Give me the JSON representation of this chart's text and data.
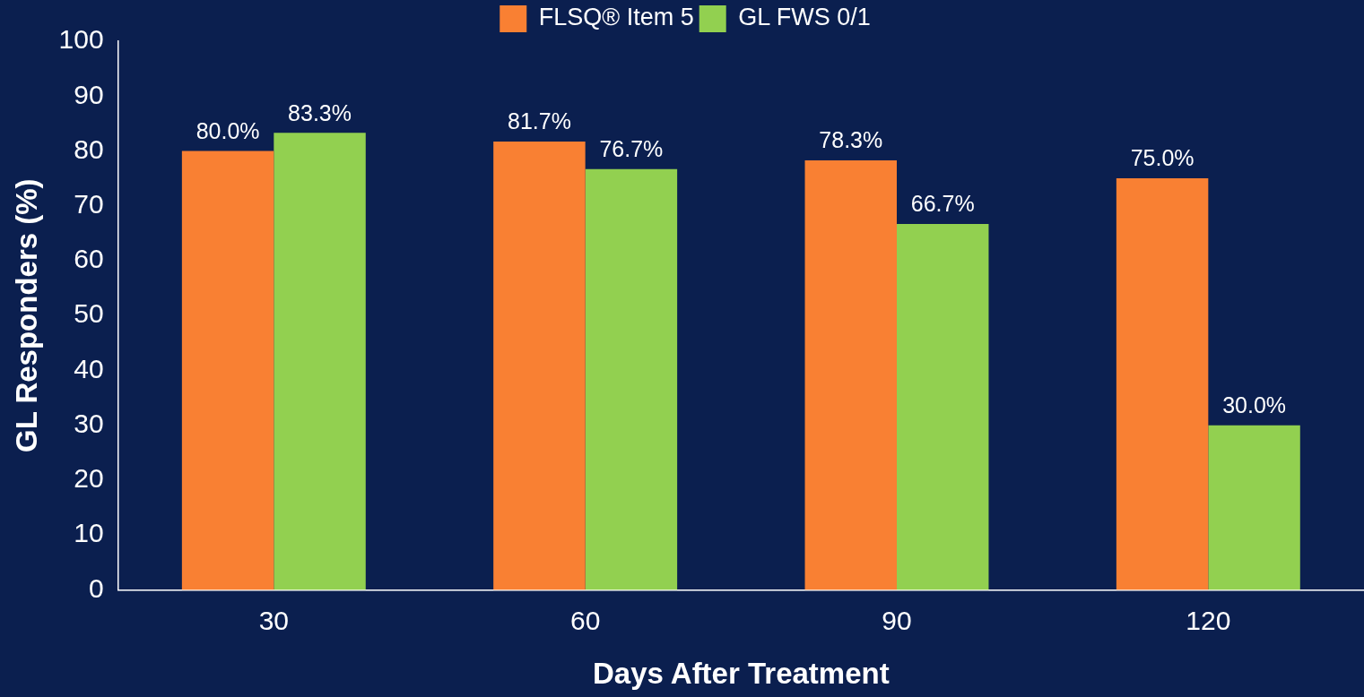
{
  "chart_data": {
    "type": "bar",
    "xlabel": "Days After Treatment",
    "ylabel": "GL Responders (%)",
    "categories": [
      "30",
      "60",
      "90",
      "120"
    ],
    "series": [
      {
        "name": "FLSQ® Item 5",
        "color": "#f98033",
        "values": [
          80.0,
          81.7,
          78.3,
          75.0
        ],
        "value_labels": [
          "80.0%",
          "81.7%",
          "78.3%",
          "75.0%"
        ]
      },
      {
        "name": "GL FWS 0/1",
        "color": "#92d050",
        "values": [
          83.3,
          76.7,
          66.7,
          30.0
        ],
        "value_labels": [
          "83.3%",
          "76.7%",
          "66.7%",
          "30.0%"
        ]
      }
    ],
    "ylim": [
      0,
      100
    ],
    "yticks": [
      0,
      10,
      20,
      30,
      40,
      50,
      60,
      70,
      80,
      90,
      100
    ],
    "grid": false,
    "legend": "top"
  }
}
